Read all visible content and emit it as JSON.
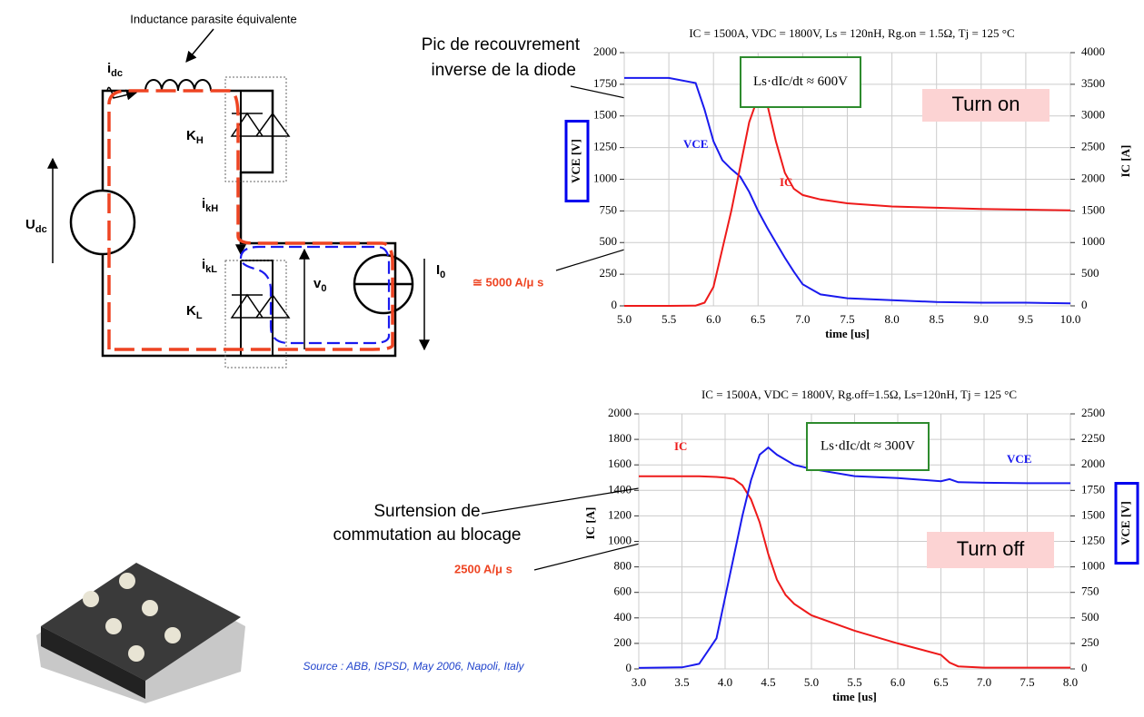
{
  "diagram": {
    "caption": "Inductance parasite équivalente",
    "labels": [
      {
        "main": "i",
        "sub": "dc"
      },
      {
        "main": "K",
        "sub": "H"
      },
      {
        "main": "U",
        "sub": "dc"
      },
      {
        "main": "i",
        "sub": "kH"
      },
      {
        "main": "i",
        "sub": "kL"
      },
      {
        "main": "v",
        "sub": "0"
      },
      {
        "main": "I",
        "sub": "0"
      },
      {
        "main": "K",
        "sub": "L"
      }
    ]
  },
  "annotations": {
    "recovery_peak": [
      "Pic de recouvrement",
      "inverse de la diode"
    ],
    "di_dt_on": "≅ 5000 A/μ s",
    "overvoltage": [
      "Surtension de",
      "commutation au blocage"
    ],
    "di_dt_off": "2500 A/μ s",
    "source": "Source : ABB, ISPSD, May 2006, Napoli, Italy"
  },
  "chart_data": [
    {
      "type": "line",
      "title": "IC = 1500A, VDC = 1800V, Ls = 120nH, Rg.on = 1.5Ω, Tj = 125 °C",
      "xlabel": "time [us]",
      "ylabel": "VCE [V]",
      "y2label": "IC [A]",
      "highlight_axis_label": "y",
      "highlight_color": "#0000ee",
      "x": [
        5.0,
        5.5,
        5.8,
        5.9,
        6.0,
        6.1,
        6.2,
        6.3,
        6.4,
        6.5,
        6.6,
        6.7,
        6.8,
        6.9,
        7.0,
        7.2,
        7.5,
        8.0,
        8.5,
        9.0,
        9.5,
        10.0
      ],
      "series": [
        {
          "name": "VCE",
          "color": "#1a1aee",
          "axis": "y",
          "values": [
            1800,
            1800,
            1760,
            1550,
            1300,
            1150,
            1080,
            1020,
            900,
            750,
            620,
            500,
            380,
            270,
            170,
            90,
            60,
            45,
            30,
            25,
            25,
            20
          ]
        },
        {
          "name": "IC",
          "color": "#ee1a1a",
          "axis": "y2",
          "values": [
            0,
            0,
            5,
            50,
            300,
            900,
            1500,
            2200,
            2900,
            3300,
            3200,
            2600,
            2100,
            1850,
            1750,
            1680,
            1620,
            1570,
            1550,
            1530,
            1520,
            1510
          ]
        }
      ],
      "xlim": [
        5,
        10
      ],
      "xticks": [
        {
          "value": 5,
          "label": "5.0"
        },
        5.5,
        {
          "value": 6,
          "label": "6.0"
        },
        6.5,
        {
          "value": 7,
          "label": "7.0"
        },
        7.5,
        {
          "value": 8,
          "label": "8.0"
        },
        8.5,
        {
          "value": 9,
          "label": "9.0"
        },
        9.5,
        {
          "value": 10,
          "label": "10.0"
        }
      ],
      "ylim": [
        0,
        2000
      ],
      "yticks": [
        0,
        250,
        500,
        750,
        1000,
        1250,
        1500,
        1750,
        2000
      ],
      "y2lim": [
        0,
        4000
      ],
      "y2ticks": [
        0,
        500,
        1000,
        1500,
        2000,
        2500,
        3000,
        3500,
        4000
      ],
      "grid": true,
      "annotations": [
        "Turn on",
        "Ls·dIc/dt ≈ 600V"
      ]
    },
    {
      "type": "line",
      "title": "IC = 1500A, VDC = 1800V, Rg.off=1.5Ω, Ls=120nH, Tj = 125 °C",
      "xlabel": "time [us]",
      "ylabel": "IC [A]",
      "y2label": "VCE [V]",
      "highlight_axis_label": "y2",
      "highlight_color": "#0000ee",
      "x": [
        3.0,
        3.5,
        3.7,
        3.9,
        4.0,
        4.1,
        4.2,
        4.3,
        4.4,
        4.5,
        4.6,
        4.7,
        4.8,
        5.0,
        5.5,
        6.0,
        6.5,
        6.6,
        6.7,
        7.0,
        7.5,
        8.0
      ],
      "series": [
        {
          "name": "IC",
          "color": "#ee1a1a",
          "axis": "y",
          "values": [
            1510,
            1510,
            1510,
            1505,
            1500,
            1490,
            1440,
            1330,
            1150,
            900,
            700,
            580,
            510,
            420,
            300,
            200,
            110,
            50,
            20,
            10,
            10,
            10
          ]
        },
        {
          "name": "VCE",
          "color": "#1a1aee",
          "axis": "y2",
          "values": [
            10,
            15,
            50,
            300,
            700,
            1100,
            1500,
            1850,
            2100,
            2170,
            2100,
            2050,
            2000,
            1960,
            1890,
            1870,
            1840,
            1860,
            1830,
            1825,
            1820,
            1820
          ]
        }
      ],
      "xlim": [
        3,
        8
      ],
      "xticks": [
        {
          "value": 3,
          "label": "3.0"
        },
        3.5,
        {
          "value": 4,
          "label": "4.0"
        },
        4.5,
        {
          "value": 5,
          "label": "5.0"
        },
        5.5,
        {
          "value": 6,
          "label": "6.0"
        },
        6.5,
        {
          "value": 7,
          "label": "7.0"
        },
        7.5,
        {
          "value": 8,
          "label": "8.0"
        }
      ],
      "ylim": [
        0,
        2000
      ],
      "yticks": [
        0,
        200,
        400,
        600,
        800,
        1000,
        1200,
        1400,
        1600,
        1800,
        2000
      ],
      "y2lim": [
        0,
        2500
      ],
      "y2ticks": [
        0,
        250,
        500,
        750,
        1000,
        1250,
        1500,
        1750,
        2000,
        2250,
        2500
      ],
      "grid": true,
      "annotations": [
        "Turn off",
        "Ls·dIc/dt ≈ 300V"
      ]
    }
  ]
}
